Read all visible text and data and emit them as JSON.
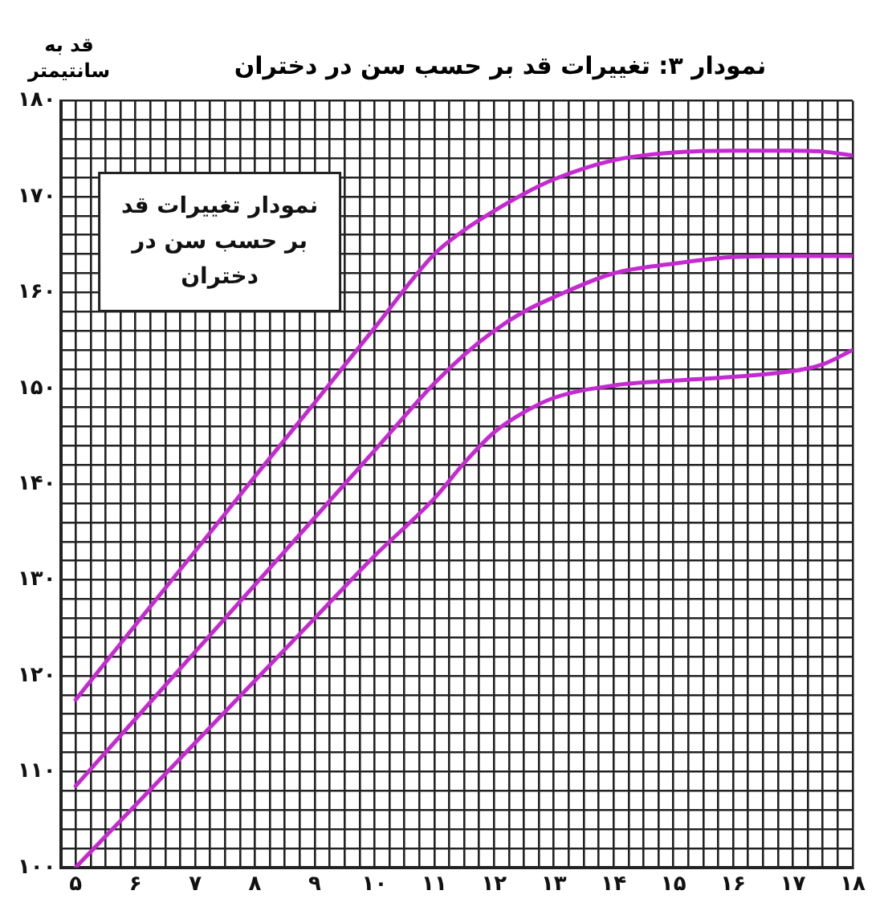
{
  "chart_data": {
    "type": "line",
    "title": "نمودار ۳: تغییرات قد بر حسب سن در دختران",
    "ylabel": "قد به سانتیمتر",
    "annotations": [
      "نمودار تغییرات قد بر حسب سن در دختران"
    ],
    "x": [
      5,
      6,
      7,
      8,
      9,
      10,
      11,
      11.5,
      12,
      12.5,
      13,
      14,
      15,
      16,
      17,
      17.5,
      18
    ],
    "series": [
      {
        "color": "#c42ad0",
        "values": [
          117.5,
          125.3,
          133,
          140.8,
          148.5,
          156.3,
          164,
          166.5,
          168.5,
          170.3,
          171.8,
          173.8,
          174.6,
          174.8,
          174.8,
          174.7,
          174.3
        ]
      },
      {
        "color": "#c42ad0",
        "values": [
          108.5,
          115.5,
          122.5,
          129.5,
          136.5,
          143.5,
          150.5,
          153.5,
          156,
          158,
          159.5,
          162,
          163,
          163.7,
          163.8,
          163.8,
          163.8
        ]
      },
      {
        "color": "#c42ad0",
        "values": [
          100,
          106.5,
          113,
          119.5,
          126,
          132.5,
          138.5,
          142.2,
          145.4,
          147.5,
          149,
          150.3,
          150.8,
          151.2,
          151.8,
          152.5,
          154
        ]
      }
    ],
    "xlim": [
      4.75,
      18
    ],
    "ylim": [
      100,
      180
    ],
    "xticks": [
      {
        "value": 4.75,
        "label": null
      },
      {
        "value": 5,
        "label": "۵"
      },
      {
        "value": 5.25,
        "label": null
      },
      {
        "value": 5.5,
        "label": null
      },
      {
        "value": 5.75,
        "label": null
      },
      {
        "value": 6,
        "label": "۶"
      },
      {
        "value": 6.25,
        "label": null
      },
      {
        "value": 6.5,
        "label": null
      },
      {
        "value": 6.75,
        "label": null
      },
      {
        "value": 7,
        "label": "۷"
      },
      {
        "value": 7.25,
        "label": null
      },
      {
        "value": 7.5,
        "label": null
      },
      {
        "value": 7.75,
        "label": null
      },
      {
        "value": 8,
        "label": "۸"
      },
      {
        "value": 8.25,
        "label": null
      },
      {
        "value": 8.5,
        "label": null
      },
      {
        "value": 8.75,
        "label": null
      },
      {
        "value": 9,
        "label": "۹"
      },
      {
        "value": 9.25,
        "label": null
      },
      {
        "value": 9.5,
        "label": null
      },
      {
        "value": 9.75,
        "label": null
      },
      {
        "value": 10,
        "label": "۱۰"
      },
      {
        "value": 10.25,
        "label": null
      },
      {
        "value": 10.5,
        "label": null
      },
      {
        "value": 10.75,
        "label": null
      },
      {
        "value": 11,
        "label": "۱۱"
      },
      {
        "value": 11.25,
        "label": null
      },
      {
        "value": 11.5,
        "label": null
      },
      {
        "value": 11.75,
        "label": null
      },
      {
        "value": 12,
        "label": "۱۲"
      },
      {
        "value": 12.25,
        "label": null
      },
      {
        "value": 12.5,
        "label": null
      },
      {
        "value": 12.75,
        "label": null
      },
      {
        "value": 13,
        "label": "۱۳"
      },
      {
        "value": 13.25,
        "label": null
      },
      {
        "value": 13.5,
        "label": null
      },
      {
        "value": 13.75,
        "label": null
      },
      {
        "value": 14,
        "label": "۱۴"
      },
      {
        "value": 14.25,
        "label": null
      },
      {
        "value": 14.5,
        "label": null
      },
      {
        "value": 14.75,
        "label": null
      },
      {
        "value": 15,
        "label": "۱۵"
      },
      {
        "value": 15.25,
        "label": null
      },
      {
        "value": 15.5,
        "label": null
      },
      {
        "value": 15.75,
        "label": null
      },
      {
        "value": 16,
        "label": "۱۶"
      },
      {
        "value": 16.25,
        "label": null
      },
      {
        "value": 16.5,
        "label": null
      },
      {
        "value": 16.75,
        "label": null
      },
      {
        "value": 17,
        "label": "۱۷"
      },
      {
        "value": 17.25,
        "label": null
      },
      {
        "value": 17.5,
        "label": null
      },
      {
        "value": 17.75,
        "label": null
      },
      {
        "value": 18,
        "label": "۱۸"
      }
    ],
    "yticks": [
      {
        "value": 100,
        "label": "۱۰۰"
      },
      {
        "value": 102,
        "label": null
      },
      {
        "value": 104,
        "label": null
      },
      {
        "value": 106,
        "label": null
      },
      {
        "value": 108,
        "label": null
      },
      {
        "value": 110,
        "label": "۱۱۰"
      },
      {
        "value": 112,
        "label": null
      },
      {
        "value": 114,
        "label": null
      },
      {
        "value": 116,
        "label": null
      },
      {
        "value": 118,
        "label": null
      },
      {
        "value": 120,
        "label": "۱۲۰"
      },
      {
        "value": 122,
        "label": null
      },
      {
        "value": 124,
        "label": null
      },
      {
        "value": 126,
        "label": null
      },
      {
        "value": 128,
        "label": null
      },
      {
        "value": 130,
        "label": "۱۳۰"
      },
      {
        "value": 132,
        "label": null
      },
      {
        "value": 134,
        "label": null
      },
      {
        "value": 136,
        "label": null
      },
      {
        "value": 138,
        "label": null
      },
      {
        "value": 140,
        "label": "۱۴۰"
      },
      {
        "value": 142,
        "label": null
      },
      {
        "value": 144,
        "label": null
      },
      {
        "value": 146,
        "label": null
      },
      {
        "value": 148,
        "label": null
      },
      {
        "value": 150,
        "label": "۱۵۰"
      },
      {
        "value": 152,
        "label": null
      },
      {
        "value": 154,
        "label": null
      },
      {
        "value": 156,
        "label": null
      },
      {
        "value": 158,
        "label": null
      },
      {
        "value": 160,
        "label": "۱۶۰"
      },
      {
        "value": 162,
        "label": null
      },
      {
        "value": 164,
        "label": null
      },
      {
        "value": 166,
        "label": null
      },
      {
        "value": 168,
        "label": null
      },
      {
        "value": 170,
        "label": "۱۷۰"
      },
      {
        "value": 172,
        "label": null
      },
      {
        "value": 174,
        "label": null
      },
      {
        "value": 176,
        "label": null
      },
      {
        "value": 178,
        "label": null
      },
      {
        "value": 180,
        "label": "۱۸۰"
      }
    ],
    "grid": true,
    "legend": false,
    "marker": "none",
    "line_style": "solid"
  }
}
